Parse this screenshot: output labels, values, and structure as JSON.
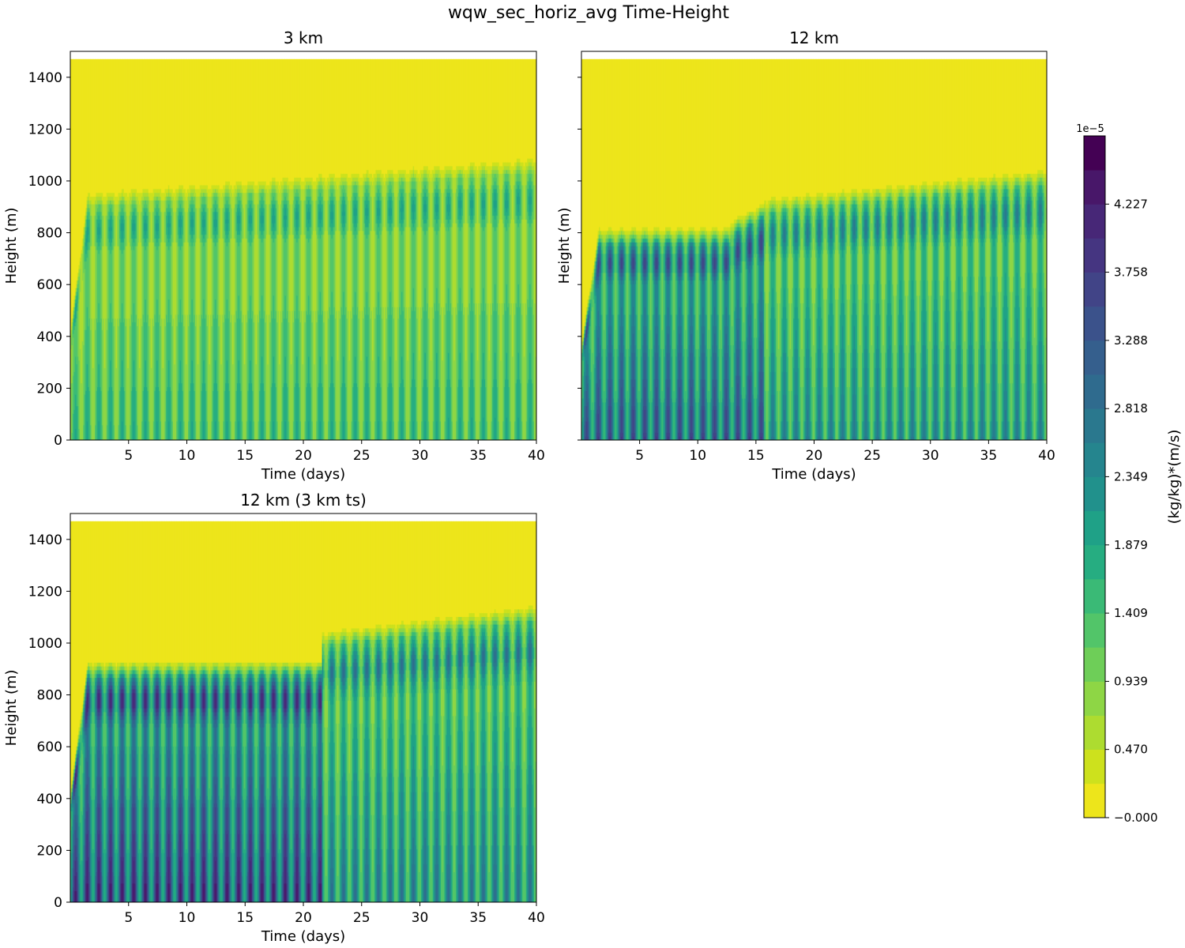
{
  "figure_title": "wqw_sec_horiz_avg Time-Height",
  "chart_data": [
    {
      "type": "heatmap",
      "id": "p3",
      "title": "3 km",
      "xlabel": "Time (days)",
      "ylabel": "Height (m)",
      "xlim": [
        0,
        40
      ],
      "ylim": [
        0,
        1500
      ],
      "xticks": [
        5,
        10,
        15,
        20,
        25,
        30,
        35,
        40
      ],
      "yticks": [
        0,
        200,
        400,
        600,
        800,
        1000,
        1200,
        1400
      ],
      "data_top_height": 1470,
      "oscillation_period_days": 1,
      "regimes": [
        {
          "t0": 0,
          "t1": 40,
          "bl_top_start": 940,
          "bl_top_end": 1080,
          "intensity": 0.32
        }
      ]
    },
    {
      "type": "heatmap",
      "id": "p12",
      "title": "12 km",
      "xlabel": "Time (days)",
      "ylabel": "Height (m)",
      "xlim": [
        0,
        40
      ],
      "ylim": [
        0,
        1500
      ],
      "xticks": [
        5,
        10,
        15,
        20,
        25,
        30,
        35,
        40
      ],
      "yticks": [
        0,
        200,
        400,
        600,
        800,
        1000,
        1200,
        1400
      ],
      "data_top_height": 1470,
      "oscillation_period_days": 1,
      "regimes": [
        {
          "t0": 0,
          "t1": 12.8,
          "bl_top_start": 800,
          "bl_top_end": 805,
          "intensity": 0.62
        },
        {
          "t0": 12.8,
          "t1": 15.7,
          "bl_top_start": 830,
          "bl_top_end": 900,
          "intensity": 0.62
        },
        {
          "t0": 15.7,
          "t1": 40,
          "bl_top_start": 920,
          "bl_top_end": 1030,
          "intensity": 0.45
        }
      ]
    },
    {
      "type": "heatmap",
      "id": "p12ts",
      "title": "12 km (3 km ts)",
      "xlabel": "Time (days)",
      "ylabel": "Height (m)",
      "xlim": [
        0,
        40
      ],
      "ylim": [
        0,
        1500
      ],
      "xticks": [
        5,
        10,
        15,
        20,
        25,
        30,
        35,
        40
      ],
      "yticks": [
        0,
        200,
        400,
        600,
        800,
        1000,
        1200,
        1400
      ],
      "data_top_height": 1470,
      "oscillation_period_days": 1,
      "regimes": [
        {
          "t0": 0,
          "t1": 21.6,
          "bl_top_start": 910,
          "bl_top_end": 915,
          "intensity": 0.72
        },
        {
          "t0": 21.6,
          "t1": 40,
          "bl_top_start": 1030,
          "bl_top_end": 1130,
          "intensity": 0.48
        }
      ]
    }
  ],
  "colorbar": {
    "label": "(kg/kg)*(m/s)",
    "offset_label": "1e−5",
    "tick_labels": [
      "−0.000",
      "0.470",
      "0.939",
      "1.409",
      "1.879",
      "2.349",
      "2.818",
      "3.288",
      "3.758",
      "4.227"
    ],
    "levels": [
      0.0,
      0.235,
      0.47,
      0.704,
      0.939,
      1.174,
      1.409,
      1.644,
      1.879,
      2.114,
      2.349,
      2.584,
      2.818,
      3.053,
      3.288,
      3.523,
      3.758,
      3.992,
      4.227,
      4.462,
      4.697
    ],
    "colors": [
      "#ede51b",
      "#cde11d",
      "#addc30",
      "#8ed645",
      "#6ece58",
      "#52c569",
      "#3aba76",
      "#26ad81",
      "#1fa187",
      "#21918c",
      "#25858e",
      "#2a788e",
      "#2f6b8e",
      "#355f8d",
      "#3b528b",
      "#414487",
      "#453581",
      "#472777",
      "#481769",
      "#440154"
    ]
  }
}
